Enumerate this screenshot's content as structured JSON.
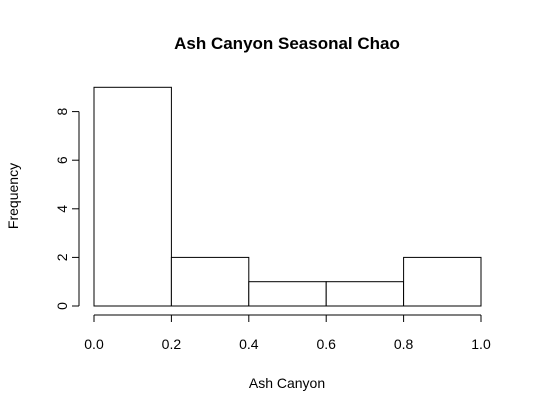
{
  "chart_data": {
    "type": "bar",
    "subtype": "histogram",
    "title": "Ash Canyon Seasonal Chao",
    "xlabel": "Ash Canyon",
    "ylabel": "Frequency",
    "bins": [
      {
        "start": 0.0,
        "end": 0.2,
        "count": 9
      },
      {
        "start": 0.2,
        "end": 0.4,
        "count": 2
      },
      {
        "start": 0.4,
        "end": 0.6,
        "count": 1
      },
      {
        "start": 0.6,
        "end": 0.8,
        "count": 1
      },
      {
        "start": 0.8,
        "end": 1.0,
        "count": 2
      }
    ],
    "xlim": [
      0,
      1
    ],
    "ylim": [
      0,
      9
    ],
    "x_ticks": [
      0.0,
      0.2,
      0.4,
      0.6,
      0.8,
      1.0
    ],
    "x_tick_labels": [
      "0.0",
      "0.2",
      "0.4",
      "0.6",
      "0.8",
      "1.0"
    ],
    "y_ticks": [
      0,
      2,
      4,
      6,
      8
    ],
    "y_tick_labels": [
      "0",
      "2",
      "4",
      "6",
      "8"
    ],
    "grid": false,
    "bar_fill": "#ffffff",
    "bar_stroke": "#000000"
  }
}
